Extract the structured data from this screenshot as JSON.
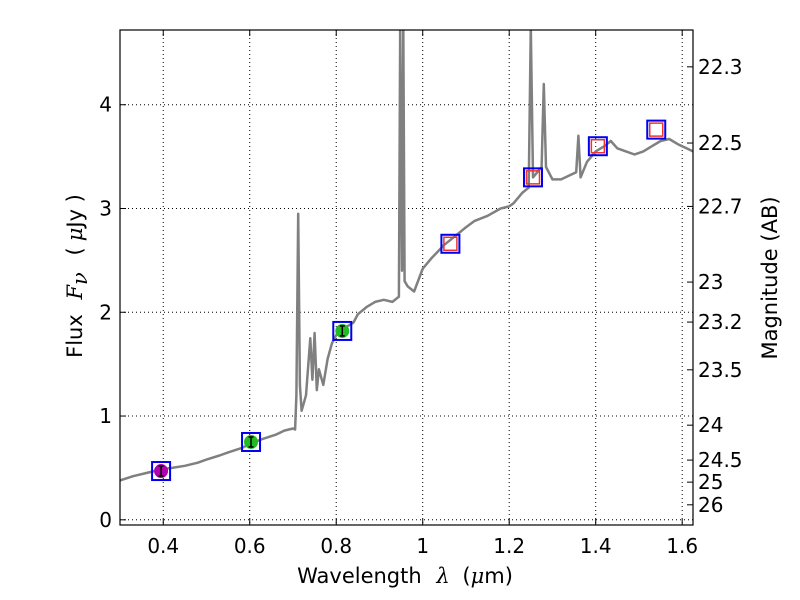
{
  "chart_data": {
    "type": "line",
    "xlabel": "Wavelength",
    "xlabel_symbol": "λ",
    "xlabel_unit_prefix": "(",
    "xlabel_unit_mu": "μ",
    "xlabel_unit_rest": "m)",
    "ylabel": "Flux",
    "ylabel_symbol": "F",
    "ylabel_subscript": "ν",
    "ylabel_unit_prefix": "(",
    "ylabel_unit_mu": "μ",
    "ylabel_unit_rest": "Jy )",
    "y2label": "Magnitude (AB)",
    "xlim": [
      0.3,
      1.625
    ],
    "ylim": [
      -0.05,
      4.72
    ],
    "grid": true,
    "x_ticks": [
      {
        "value": 0.4,
        "label": "0.4"
      },
      {
        "value": 0.6,
        "label": "0.6"
      },
      {
        "value": 0.8,
        "label": "0.8"
      },
      {
        "value": 1.0,
        "label": "1"
      },
      {
        "value": 1.2,
        "label": "1.2"
      },
      {
        "value": 1.4,
        "label": "1.4"
      },
      {
        "value": 1.6,
        "label": "1.6"
      }
    ],
    "y_ticks": [
      {
        "value": 0,
        "label": "0"
      },
      {
        "value": 1,
        "label": "1"
      },
      {
        "value": 2,
        "label": "2"
      },
      {
        "value": 3,
        "label": "3"
      },
      {
        "value": 4,
        "label": "4"
      }
    ],
    "y2_ticks": [
      {
        "value": 22.3,
        "label": "22.3"
      },
      {
        "value": 22.5,
        "label": "22.5"
      },
      {
        "value": 22.7,
        "label": "22.7"
      },
      {
        "value": 23.0,
        "label": "23"
      },
      {
        "value": 23.2,
        "label": "23.2"
      },
      {
        "value": 23.5,
        "label": "23.5"
      },
      {
        "value": 24.0,
        "label": "24"
      },
      {
        "value": 24.5,
        "label": "24.5"
      },
      {
        "value": 25.0,
        "label": "25"
      },
      {
        "value": 26.0,
        "label": "26"
      }
    ],
    "sed_color": "#808080",
    "sed": [
      [
        0.3,
        0.38
      ],
      [
        0.33,
        0.42
      ],
      [
        0.36,
        0.45
      ],
      [
        0.38,
        0.47
      ],
      [
        0.4,
        0.49
      ],
      [
        0.42,
        0.5
      ],
      [
        0.45,
        0.52
      ],
      [
        0.48,
        0.55
      ],
      [
        0.5,
        0.58
      ],
      [
        0.53,
        0.62
      ],
      [
        0.55,
        0.65
      ],
      [
        0.58,
        0.69
      ],
      [
        0.6,
        0.73
      ],
      [
        0.63,
        0.78
      ],
      [
        0.66,
        0.82
      ],
      [
        0.68,
        0.86
      ],
      [
        0.7,
        0.88
      ],
      [
        0.705,
        0.87
      ],
      [
        0.708,
        1.2
      ],
      [
        0.712,
        2.95
      ],
      [
        0.716,
        1.3
      ],
      [
        0.72,
        1.05
      ],
      [
        0.73,
        1.2
      ],
      [
        0.74,
        1.75
      ],
      [
        0.745,
        1.35
      ],
      [
        0.75,
        1.8
      ],
      [
        0.755,
        1.25
      ],
      [
        0.76,
        1.45
      ],
      [
        0.77,
        1.3
      ],
      [
        0.78,
        1.55
      ],
      [
        0.79,
        1.7
      ],
      [
        0.8,
        1.78
      ],
      [
        0.82,
        1.85
      ],
      [
        0.84,
        1.9
      ],
      [
        0.85,
        1.98
      ],
      [
        0.87,
        2.05
      ],
      [
        0.89,
        2.1
      ],
      [
        0.91,
        2.12
      ],
      [
        0.93,
        2.1
      ],
      [
        0.945,
        2.15
      ],
      [
        0.948,
        4.75
      ],
      [
        0.952,
        2.4
      ],
      [
        0.955,
        4.75
      ],
      [
        0.958,
        2.3
      ],
      [
        0.965,
        2.25
      ],
      [
        0.98,
        2.2
      ],
      [
        1.0,
        2.42
      ],
      [
        1.02,
        2.52
      ],
      [
        1.05,
        2.65
      ],
      [
        1.08,
        2.75
      ],
      [
        1.1,
        2.82
      ],
      [
        1.12,
        2.88
      ],
      [
        1.15,
        2.93
      ],
      [
        1.18,
        3.0
      ],
      [
        1.2,
        3.02
      ],
      [
        1.21,
        3.05
      ],
      [
        1.23,
        3.15
      ],
      [
        1.245,
        3.2
      ],
      [
        1.25,
        4.75
      ],
      [
        1.255,
        3.3
      ],
      [
        1.265,
        3.35
      ],
      [
        1.275,
        3.4
      ],
      [
        1.28,
        4.2
      ],
      [
        1.285,
        3.4
      ],
      [
        1.3,
        3.28
      ],
      [
        1.32,
        3.28
      ],
      [
        1.34,
        3.32
      ],
      [
        1.355,
        3.35
      ],
      [
        1.36,
        3.7
      ],
      [
        1.365,
        3.3
      ],
      [
        1.38,
        3.45
      ],
      [
        1.4,
        3.55
      ],
      [
        1.42,
        3.6
      ],
      [
        1.435,
        3.65
      ],
      [
        1.45,
        3.58
      ],
      [
        1.47,
        3.55
      ],
      [
        1.49,
        3.52
      ],
      [
        1.51,
        3.55
      ],
      [
        1.53,
        3.6
      ],
      [
        1.55,
        3.65
      ],
      [
        1.57,
        3.67
      ],
      [
        1.59,
        3.62
      ],
      [
        1.61,
        3.58
      ],
      [
        1.625,
        3.55
      ]
    ],
    "photometry": [
      {
        "x": 0.395,
        "y": 0.47,
        "marker": "circle",
        "color": "#b000b0"
      },
      {
        "x": 0.603,
        "y": 0.75,
        "marker": "circle",
        "color": "#22bb22"
      },
      {
        "x": 0.814,
        "y": 1.82,
        "marker": "circle",
        "color": "#22bb22"
      },
      {
        "x": 1.064,
        "y": 2.66,
        "marker": "square",
        "color": "#ee3333"
      },
      {
        "x": 1.255,
        "y": 3.3,
        "marker": "square",
        "color": "#ee3333"
      },
      {
        "x": 1.405,
        "y": 3.6,
        "marker": "square",
        "color": "#ee3333"
      },
      {
        "x": 1.54,
        "y": 3.76,
        "marker": "square",
        "color": "#ee3333"
      }
    ],
    "model_box_color": "#0000ee"
  }
}
